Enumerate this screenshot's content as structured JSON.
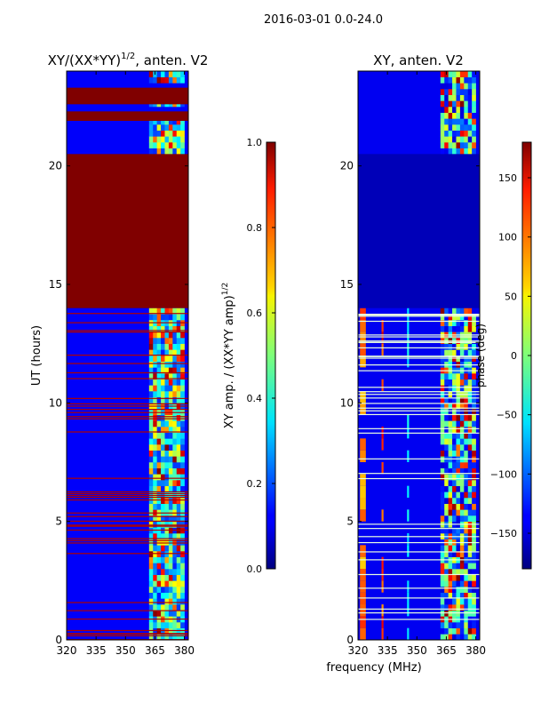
{
  "figure": {
    "suptitle": "2016-03-01 0.0-24.0"
  },
  "chart_data": [
    {
      "type": "heatmap",
      "title": "XY/(XX*YY)^1/2, anten. V2",
      "title_main": "XY/(XX*YY)",
      "title_exp": "1/2",
      "title_tail": ", anten. V2",
      "xlabel": "",
      "ylabel": "UT (hours)",
      "xlim": [
        320,
        382
      ],
      "ylim": [
        0,
        24
      ],
      "xticks": [
        "320",
        "335",
        "350",
        "365",
        "380"
      ],
      "xtick_values": [
        320,
        335,
        350,
        365,
        380
      ],
      "yticks": [
        "0",
        "5",
        "10",
        "15",
        "20"
      ],
      "ytick_values": [
        0,
        5,
        10,
        15,
        20
      ],
      "colorbar": {
        "label": "XY amp. / (XX*YY amp)^1/2",
        "label_main": "XY amp. / (XX*YY amp)",
        "label_exp": "1/2",
        "range": [
          0.0,
          1.0
        ],
        "ticks": [
          "0.0",
          "0.2",
          "0.4",
          "0.6",
          "0.8",
          "1.0"
        ],
        "tick_values": [
          0.0,
          0.2,
          0.4,
          0.6,
          0.8,
          1.0
        ]
      },
      "bands": [
        {
          "t0": 20.5,
          "t1": 14.0,
          "value": 1.0
        },
        {
          "t0": 23.3,
          "t1": 22.6,
          "value": 1.0
        },
        {
          "t0": 22.3,
          "t1": 21.9,
          "value": 1.0
        }
      ],
      "active_freq_range": [
        362,
        380
      ],
      "background_value": 0.12
    },
    {
      "type": "heatmap",
      "title": "XY, anten. V2",
      "xlabel": "frequency (MHz)",
      "ylabel": "",
      "xlim": [
        320,
        382
      ],
      "ylim": [
        0,
        24
      ],
      "xticks": [
        "320",
        "335",
        "350",
        "365",
        "380"
      ],
      "xtick_values": [
        320,
        335,
        350,
        365,
        380
      ],
      "yticks": [
        "0",
        "5",
        "10",
        "15",
        "20"
      ],
      "ytick_values": [
        0,
        5,
        10,
        15,
        20
      ],
      "colorbar": {
        "label": "phase (deg)",
        "range": [
          -180,
          180
        ],
        "ticks": [
          "150",
          "100",
          "50",
          "0",
          "−50",
          "−100",
          "−150"
        ],
        "tick_values": [
          150,
          100,
          50,
          0,
          -50,
          -100,
          -150
        ]
      },
      "bands": [
        {
          "t0": 20.5,
          "t1": 14.0,
          "value": -160
        }
      ],
      "active_freq_range": [
        362,
        380
      ],
      "background_value": -140
    }
  ]
}
